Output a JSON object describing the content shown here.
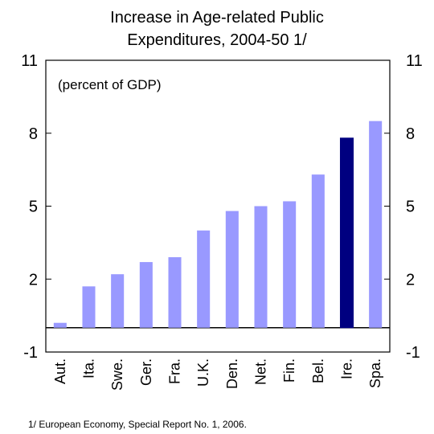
{
  "chart_data": {
    "type": "bar",
    "title_lines": [
      "Increase in Age-related Public",
      "Expenditures, 2004-50 1/"
    ],
    "annotation": "(percent of GDP)",
    "footnote": "1/ European Economy, Special Report No. 1, 2006.",
    "categories": [
      "Aut.",
      "Ita.",
      "Swe.",
      "Ger.",
      "Fra.",
      "U.K.",
      "Den.",
      "Net.",
      "Fin.",
      "Bel.",
      "Ire.",
      "Spa."
    ],
    "values": [
      0.2,
      1.7,
      2.2,
      2.7,
      2.9,
      4.0,
      4.8,
      5.0,
      5.2,
      6.3,
      7.8,
      8.5
    ],
    "highlight_index": 10,
    "ylim": [
      -1,
      11
    ],
    "yticks": [
      -1,
      2,
      5,
      8,
      11
    ],
    "colors": {
      "bar": "#9999ff",
      "highlight": "#000080",
      "axis": "#000000"
    }
  }
}
